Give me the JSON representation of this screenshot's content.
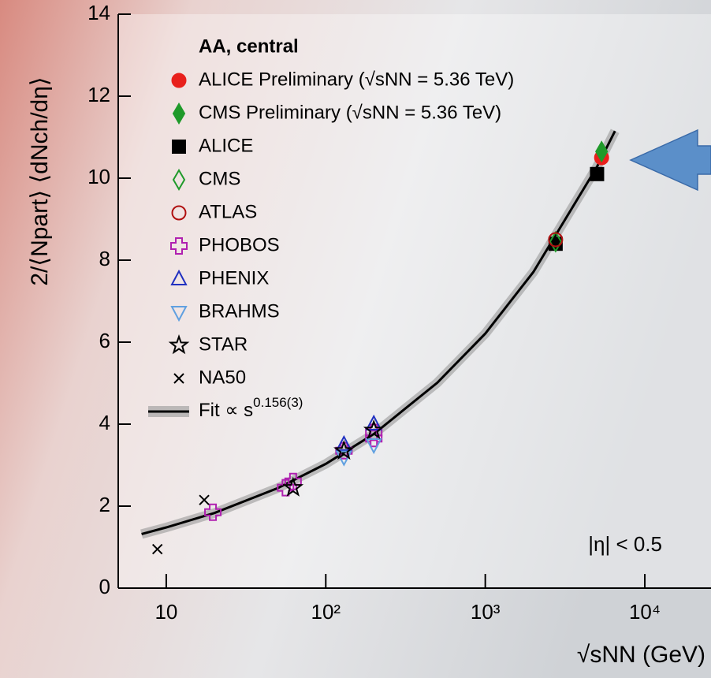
{
  "chart_data": {
    "type": "scatter",
    "x_scale": "log",
    "x_label": "√sNN (GeV)",
    "y_label": "2/⟨Npart⟩ ⟨dNch/dη⟩",
    "legend_title": "AA, central",
    "annotation": "|η| < 0.5",
    "xlim": [
      5,
      26000
    ],
    "ylim": [
      0,
      14
    ],
    "xticks": [
      10,
      {
        "value": 100,
        "label": "10²"
      },
      {
        "value": 1000,
        "label": "10³"
      },
      {
        "value": 10000,
        "label": "10⁴"
      }
    ],
    "yticks": [
      0,
      2,
      4,
      6,
      8,
      10,
      12,
      14
    ],
    "legend": "upper left",
    "series": [
      {
        "name": "ALICE Preliminary (√sNN = 5.36 TeV)",
        "marker": "circle",
        "filled": true,
        "color": "#e8201c",
        "x": [
          5360
        ],
        "values": [
          10.5
        ]
      },
      {
        "name": "CMS Preliminary (√sNN = 5.36 TeV)",
        "marker": "diamond",
        "filled": true,
        "color": "#1f9a2a",
        "x": [
          5360
        ],
        "values": [
          10.65
        ]
      },
      {
        "name": "ALICE",
        "marker": "square",
        "filled": true,
        "color": "#000000",
        "x": [
          2760,
          5020
        ],
        "values": [
          8.4,
          10.1
        ]
      },
      {
        "name": "CMS",
        "marker": "diamond",
        "filled": false,
        "color": "#1f9a2a",
        "x": [
          2760
        ],
        "values": [
          8.45
        ]
      },
      {
        "name": "ATLAS",
        "marker": "circle",
        "filled": false,
        "color": "#b01010",
        "x": [
          2760
        ],
        "values": [
          8.5
        ]
      },
      {
        "name": "PHOBOS",
        "marker": "cross",
        "filled": false,
        "color": "#b020b0",
        "x": [
          19.6,
          56,
          62.4,
          130,
          200,
          200
        ],
        "values": [
          1.85,
          2.45,
          2.6,
          3.35,
          3.65,
          3.8
        ]
      },
      {
        "name": "PHENIX",
        "marker": "triangle",
        "filled": false,
        "color": "#2030c0",
        "x": [
          130,
          200
        ],
        "values": [
          3.5,
          4.0
        ]
      },
      {
        "name": "BRAHMS",
        "marker": "triangle-down",
        "filled": false,
        "color": "#60a0e0",
        "x": [
          130,
          200
        ],
        "values": [
          3.2,
          3.5
        ]
      },
      {
        "name": "STAR",
        "marker": "star",
        "filled": false,
        "color": "#000000",
        "x": [
          62.4,
          130,
          200
        ],
        "values": [
          2.45,
          3.35,
          3.85
        ]
      },
      {
        "name": "NA50",
        "marker": "x",
        "filled": false,
        "color": "#000000",
        "x": [
          8.8,
          17.3
        ],
        "values": [
          0.95,
          2.15
        ]
      }
    ],
    "fit": {
      "name": "Fit ∝ s",
      "exponent": "0.156(3)",
      "color": "#000000",
      "band_color": "#999999",
      "x": [
        7,
        10,
        20,
        50,
        100,
        200,
        500,
        1000,
        2000,
        5000,
        6500
      ],
      "values": [
        1.32,
        1.48,
        1.83,
        2.44,
        3.03,
        3.76,
        5.01,
        6.21,
        7.71,
        10.27,
        11.15
      ]
    }
  }
}
